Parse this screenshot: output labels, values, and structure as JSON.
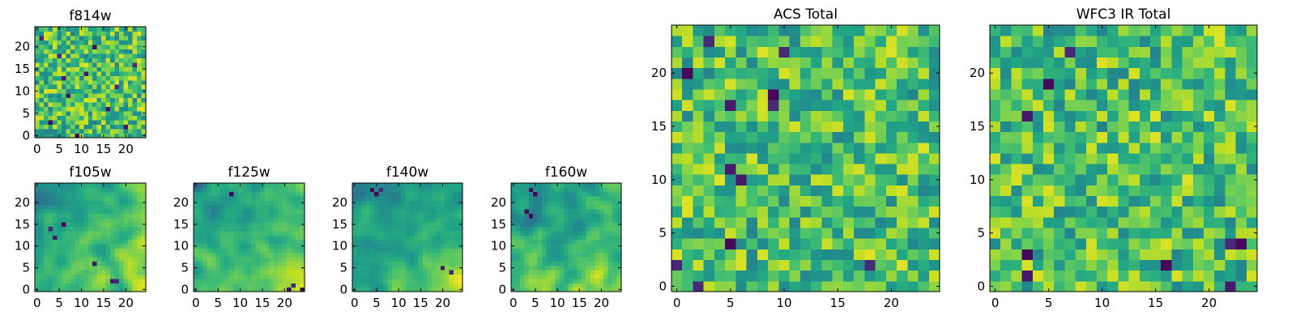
{
  "figure": {
    "colormap": "viridis",
    "colors": {
      "low": "#440154",
      "mid": "#21918c",
      "high": "#fde725",
      "frame": "#000000"
    }
  },
  "chart_data": [
    {
      "id": "f814w",
      "type": "heatmap",
      "title": "f814w",
      "grid_size": 25,
      "xlim": [
        0,
        24
      ],
      "ylim": [
        0,
        24
      ],
      "xticks": [
        0,
        5,
        10,
        15,
        20
      ],
      "yticks": [
        0,
        5,
        10,
        15,
        20
      ],
      "value_range": [
        0,
        1
      ],
      "texture": "noise",
      "notes": "25x25 pixel map of near-uniform noise with scattered dark pixels",
      "dark_pixels": [
        [
          1,
          22
        ],
        [
          3,
          3
        ],
        [
          5,
          18
        ],
        [
          7,
          9
        ],
        [
          9,
          0
        ],
        [
          11,
          14
        ],
        [
          13,
          20
        ],
        [
          16,
          6
        ],
        [
          18,
          11
        ],
        [
          20,
          2
        ],
        [
          22,
          16
        ],
        [
          6,
          13
        ]
      ]
    },
    {
      "id": "f105w",
      "type": "heatmap",
      "title": "f105w",
      "grid_size": 25,
      "xlim": [
        0,
        24
      ],
      "ylim": [
        0,
        24
      ],
      "xticks": [
        0,
        5,
        10,
        15,
        20
      ],
      "yticks": [
        0,
        5,
        10,
        15,
        20
      ],
      "value_range": [
        0,
        1
      ],
      "texture": "smooth",
      "notes": "dark patches toward upper-left, bright region toward lower-right",
      "dark_pixels": [
        [
          3,
          14
        ],
        [
          4,
          12
        ],
        [
          6,
          15
        ],
        [
          13,
          6
        ],
        [
          17,
          2
        ],
        [
          18,
          2
        ]
      ]
    },
    {
      "id": "f125w",
      "type": "heatmap",
      "title": "f125w",
      "grid_size": 25,
      "xlim": [
        0,
        24
      ],
      "ylim": [
        0,
        24
      ],
      "xticks": [
        0,
        5,
        10,
        15,
        20
      ],
      "yticks": [
        0,
        5,
        10,
        15,
        20
      ],
      "value_range": [
        0,
        1
      ],
      "texture": "smooth",
      "notes": "mostly mid-green with darker upper-left and bright patches center-right",
      "dark_pixels": [
        [
          21,
          0
        ],
        [
          22,
          1
        ],
        [
          24,
          0
        ],
        [
          8,
          22
        ]
      ]
    },
    {
      "id": "f140w",
      "type": "heatmap",
      "title": "f140w",
      "grid_size": 25,
      "xlim": [
        0,
        24
      ],
      "ylim": [
        0,
        24
      ],
      "xticks": [
        0,
        5,
        10,
        15,
        20
      ],
      "yticks": [
        0,
        5,
        10,
        15,
        20
      ],
      "value_range": [
        0,
        1
      ],
      "texture": "smooth",
      "notes": "dark top-left corner, bright yellow toward bottom and right",
      "dark_pixels": [
        [
          4,
          23
        ],
        [
          5,
          22
        ],
        [
          6,
          23
        ],
        [
          20,
          5
        ],
        [
          22,
          4
        ]
      ]
    },
    {
      "id": "f160w",
      "type": "heatmap",
      "title": "f160w",
      "grid_size": 25,
      "xlim": [
        0,
        24
      ],
      "ylim": [
        0,
        24
      ],
      "xticks": [
        0,
        5,
        10,
        15,
        20
      ],
      "yticks": [
        0,
        5,
        10,
        15,
        20
      ],
      "value_range": [
        0,
        1
      ],
      "texture": "smooth",
      "notes": "dark upper-left corner, predominantly bright yellow-green elsewhere",
      "dark_pixels": [
        [
          4,
          23
        ],
        [
          5,
          22
        ],
        [
          3,
          18
        ],
        [
          4,
          17
        ]
      ]
    },
    {
      "id": "acs_total",
      "type": "heatmap",
      "title": "ACS Total",
      "grid_size": 25,
      "xlim": [
        0,
        24
      ],
      "ylim": [
        0,
        24
      ],
      "xticks": [
        0,
        5,
        10,
        15,
        20
      ],
      "yticks": [
        0,
        5,
        10,
        15,
        20
      ],
      "value_range": [
        0,
        1
      ],
      "texture": "noise",
      "notes": "blocky green noise with a few isolated dark pixels",
      "dark_pixels": [
        [
          3,
          23
        ],
        [
          1,
          20
        ],
        [
          5,
          17
        ],
        [
          9,
          17
        ],
        [
          9,
          18
        ],
        [
          5,
          11
        ],
        [
          6,
          10
        ],
        [
          5,
          4
        ],
        [
          2,
          0
        ],
        [
          18,
          2
        ],
        [
          0,
          2
        ],
        [
          10,
          22
        ]
      ]
    },
    {
      "id": "wfc3_ir_total",
      "type": "heatmap",
      "title": "WFC3 IR Total",
      "grid_size": 25,
      "xlim": [
        0,
        24
      ],
      "ylim": [
        0,
        24
      ],
      "xticks": [
        0,
        5,
        10,
        15,
        20
      ],
      "yticks": [
        0,
        5,
        10,
        15,
        20
      ],
      "value_range": [
        0,
        1
      ],
      "texture": "noise",
      "notes": "blocky green noise, dark pixels scattered including lower-right",
      "dark_pixels": [
        [
          7,
          22
        ],
        [
          3,
          16
        ],
        [
          3,
          3
        ],
        [
          3,
          1
        ],
        [
          16,
          2
        ],
        [
          22,
          4
        ],
        [
          23,
          4
        ],
        [
          22,
          0
        ],
        [
          5,
          19
        ]
      ]
    }
  ]
}
